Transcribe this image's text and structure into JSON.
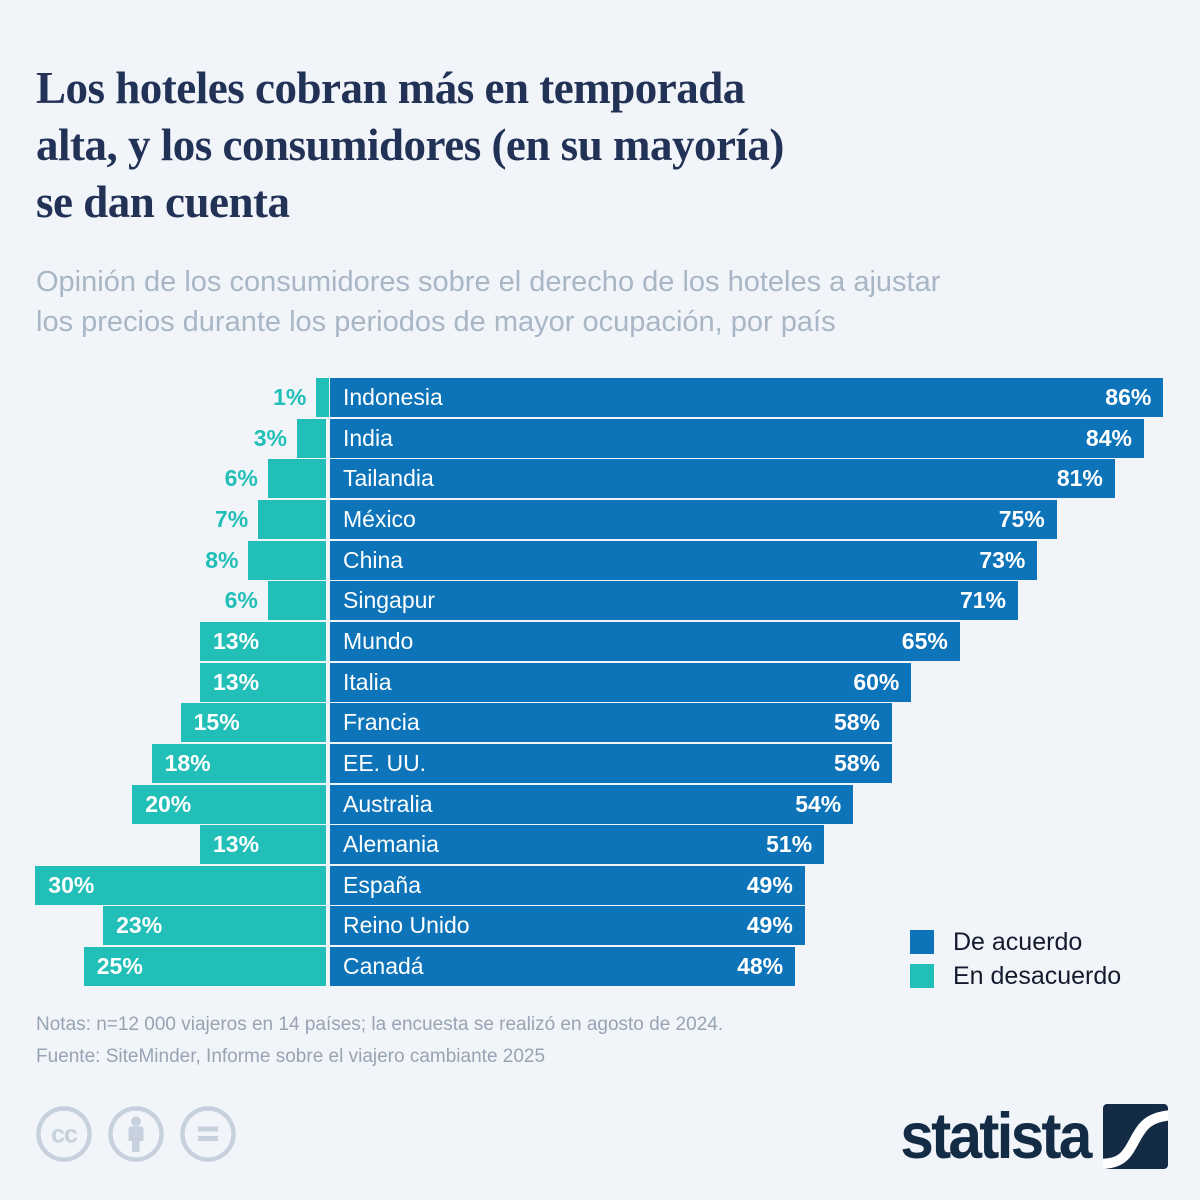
{
  "header": {
    "title_lines": [
      "Los hoteles cobran más en temporada",
      "alta, y los consumidores (en su mayoría)",
      "se dan cuenta"
    ],
    "subtitle_lines": [
      "Opinión de los consumidores sobre el derecho de los hoteles a ajustar",
      "los precios durante los periodos de mayor ocupación, por país"
    ]
  },
  "chart_data": {
    "type": "bar",
    "orientation": "horizontal-diverging",
    "categories": [
      "Indonesia",
      "India",
      "Tailandia",
      "México",
      "China",
      "Singapur",
      "Mundo",
      "Italia",
      "Francia",
      "EE. UU.",
      "Australia",
      "Alemania",
      "España",
      "Reino Unido",
      "Canadá"
    ],
    "series": [
      {
        "name": "De acuerdo",
        "color": "#0d74b9",
        "values": [
          86,
          84,
          81,
          75,
          73,
          71,
          65,
          60,
          58,
          58,
          54,
          51,
          49,
          49,
          48
        ]
      },
      {
        "name": "En desacuerdo",
        "color": "#21bfb7",
        "values": [
          1,
          3,
          6,
          7,
          8,
          6,
          13,
          13,
          15,
          18,
          20,
          13,
          30,
          23,
          25
        ]
      }
    ],
    "value_suffix": "%",
    "inside_label_threshold": 13,
    "xlim": [
      0,
      100
    ],
    "grid": false,
    "legend_position": "bottom-right"
  },
  "footer": {
    "notes": "Notas: n=12 000 viajeros en 14 países; la encuesta se realizó en agosto de 2024.",
    "source": "Fuente: SiteMinder, Informe sobre el viajero cambiante 2025",
    "brand": "statista",
    "license_icons": [
      "cc-icon",
      "attribution-icon",
      "equal-license-icon"
    ]
  },
  "colors": {
    "background": "#f1f5f9",
    "title": "#223257",
    "subtitle": "#a9b6c6",
    "agree_bar": "#0d74b9",
    "disagree_bar": "#21bfb7",
    "bar_text": "#ffffff",
    "legend_text": "#141b2e",
    "notes_text": "#98a3b4",
    "brand_navy": "#132b44",
    "license_gray": "#c7d1dd"
  }
}
